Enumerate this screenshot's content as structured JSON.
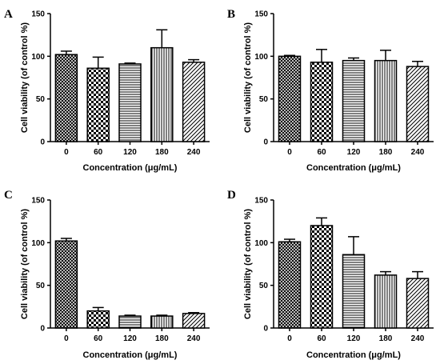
{
  "colors": {
    "ink": "#000000",
    "background": "#ffffff"
  },
  "chart_data": [
    {
      "panel": "A",
      "type": "bar",
      "categories": [
        "0",
        "60",
        "120",
        "180",
        "240"
      ],
      "values": [
        102,
        86,
        91,
        110,
        93
      ],
      "errors": [
        4,
        13,
        1,
        21,
        3
      ],
      "patterns": [
        "hatch-cross",
        "checker",
        "horizontal",
        "vertical",
        "diagonal"
      ],
      "xlabel": "Concentration (μg/mL)",
      "ylabel": "Cell viability (of control %)",
      "ylim": [
        0,
        150
      ],
      "yticks": [
        "0",
        "50",
        "100",
        "150"
      ]
    },
    {
      "panel": "B",
      "type": "bar",
      "categories": [
        "0",
        "60",
        "120",
        "180",
        "240"
      ],
      "values": [
        100,
        93,
        95,
        95,
        88
      ],
      "errors": [
        1,
        15,
        3,
        12,
        6
      ],
      "patterns": [
        "hatch-cross",
        "checker",
        "horizontal",
        "vertical",
        "diagonal"
      ],
      "xlabel": "Concentration (μg/mL)",
      "ylabel": "Cell viability (of control %)",
      "ylim": [
        0,
        150
      ],
      "yticks": [
        "0",
        "50",
        "100",
        "150"
      ]
    },
    {
      "panel": "C",
      "type": "bar",
      "categories": [
        "0",
        "60",
        "120",
        "180",
        "240"
      ],
      "values": [
        102,
        20,
        14,
        14,
        17
      ],
      "errors": [
        3,
        4,
        1,
        1,
        1
      ],
      "patterns": [
        "hatch-cross",
        "checker",
        "horizontal",
        "vertical",
        "diagonal"
      ],
      "xlabel": "Concentration (μg/mL)",
      "ylabel": "Cell viability (of control %)",
      "ylim": [
        0,
        150
      ],
      "yticks": [
        "0",
        "50",
        "100",
        "150"
      ]
    },
    {
      "panel": "D",
      "type": "bar",
      "categories": [
        "0",
        "60",
        "120",
        "180",
        "240"
      ],
      "values": [
        101,
        120,
        86,
        62,
        58
      ],
      "errors": [
        3,
        9,
        21,
        4,
        8
      ],
      "patterns": [
        "hatch-cross",
        "checker",
        "horizontal",
        "vertical",
        "diagonal"
      ],
      "xlabel": "Concentration (μg/mL)",
      "ylabel": "Cell viability (of control %)",
      "ylim": [
        0,
        150
      ],
      "yticks": [
        "0",
        "50",
        "100",
        "150"
      ]
    }
  ]
}
